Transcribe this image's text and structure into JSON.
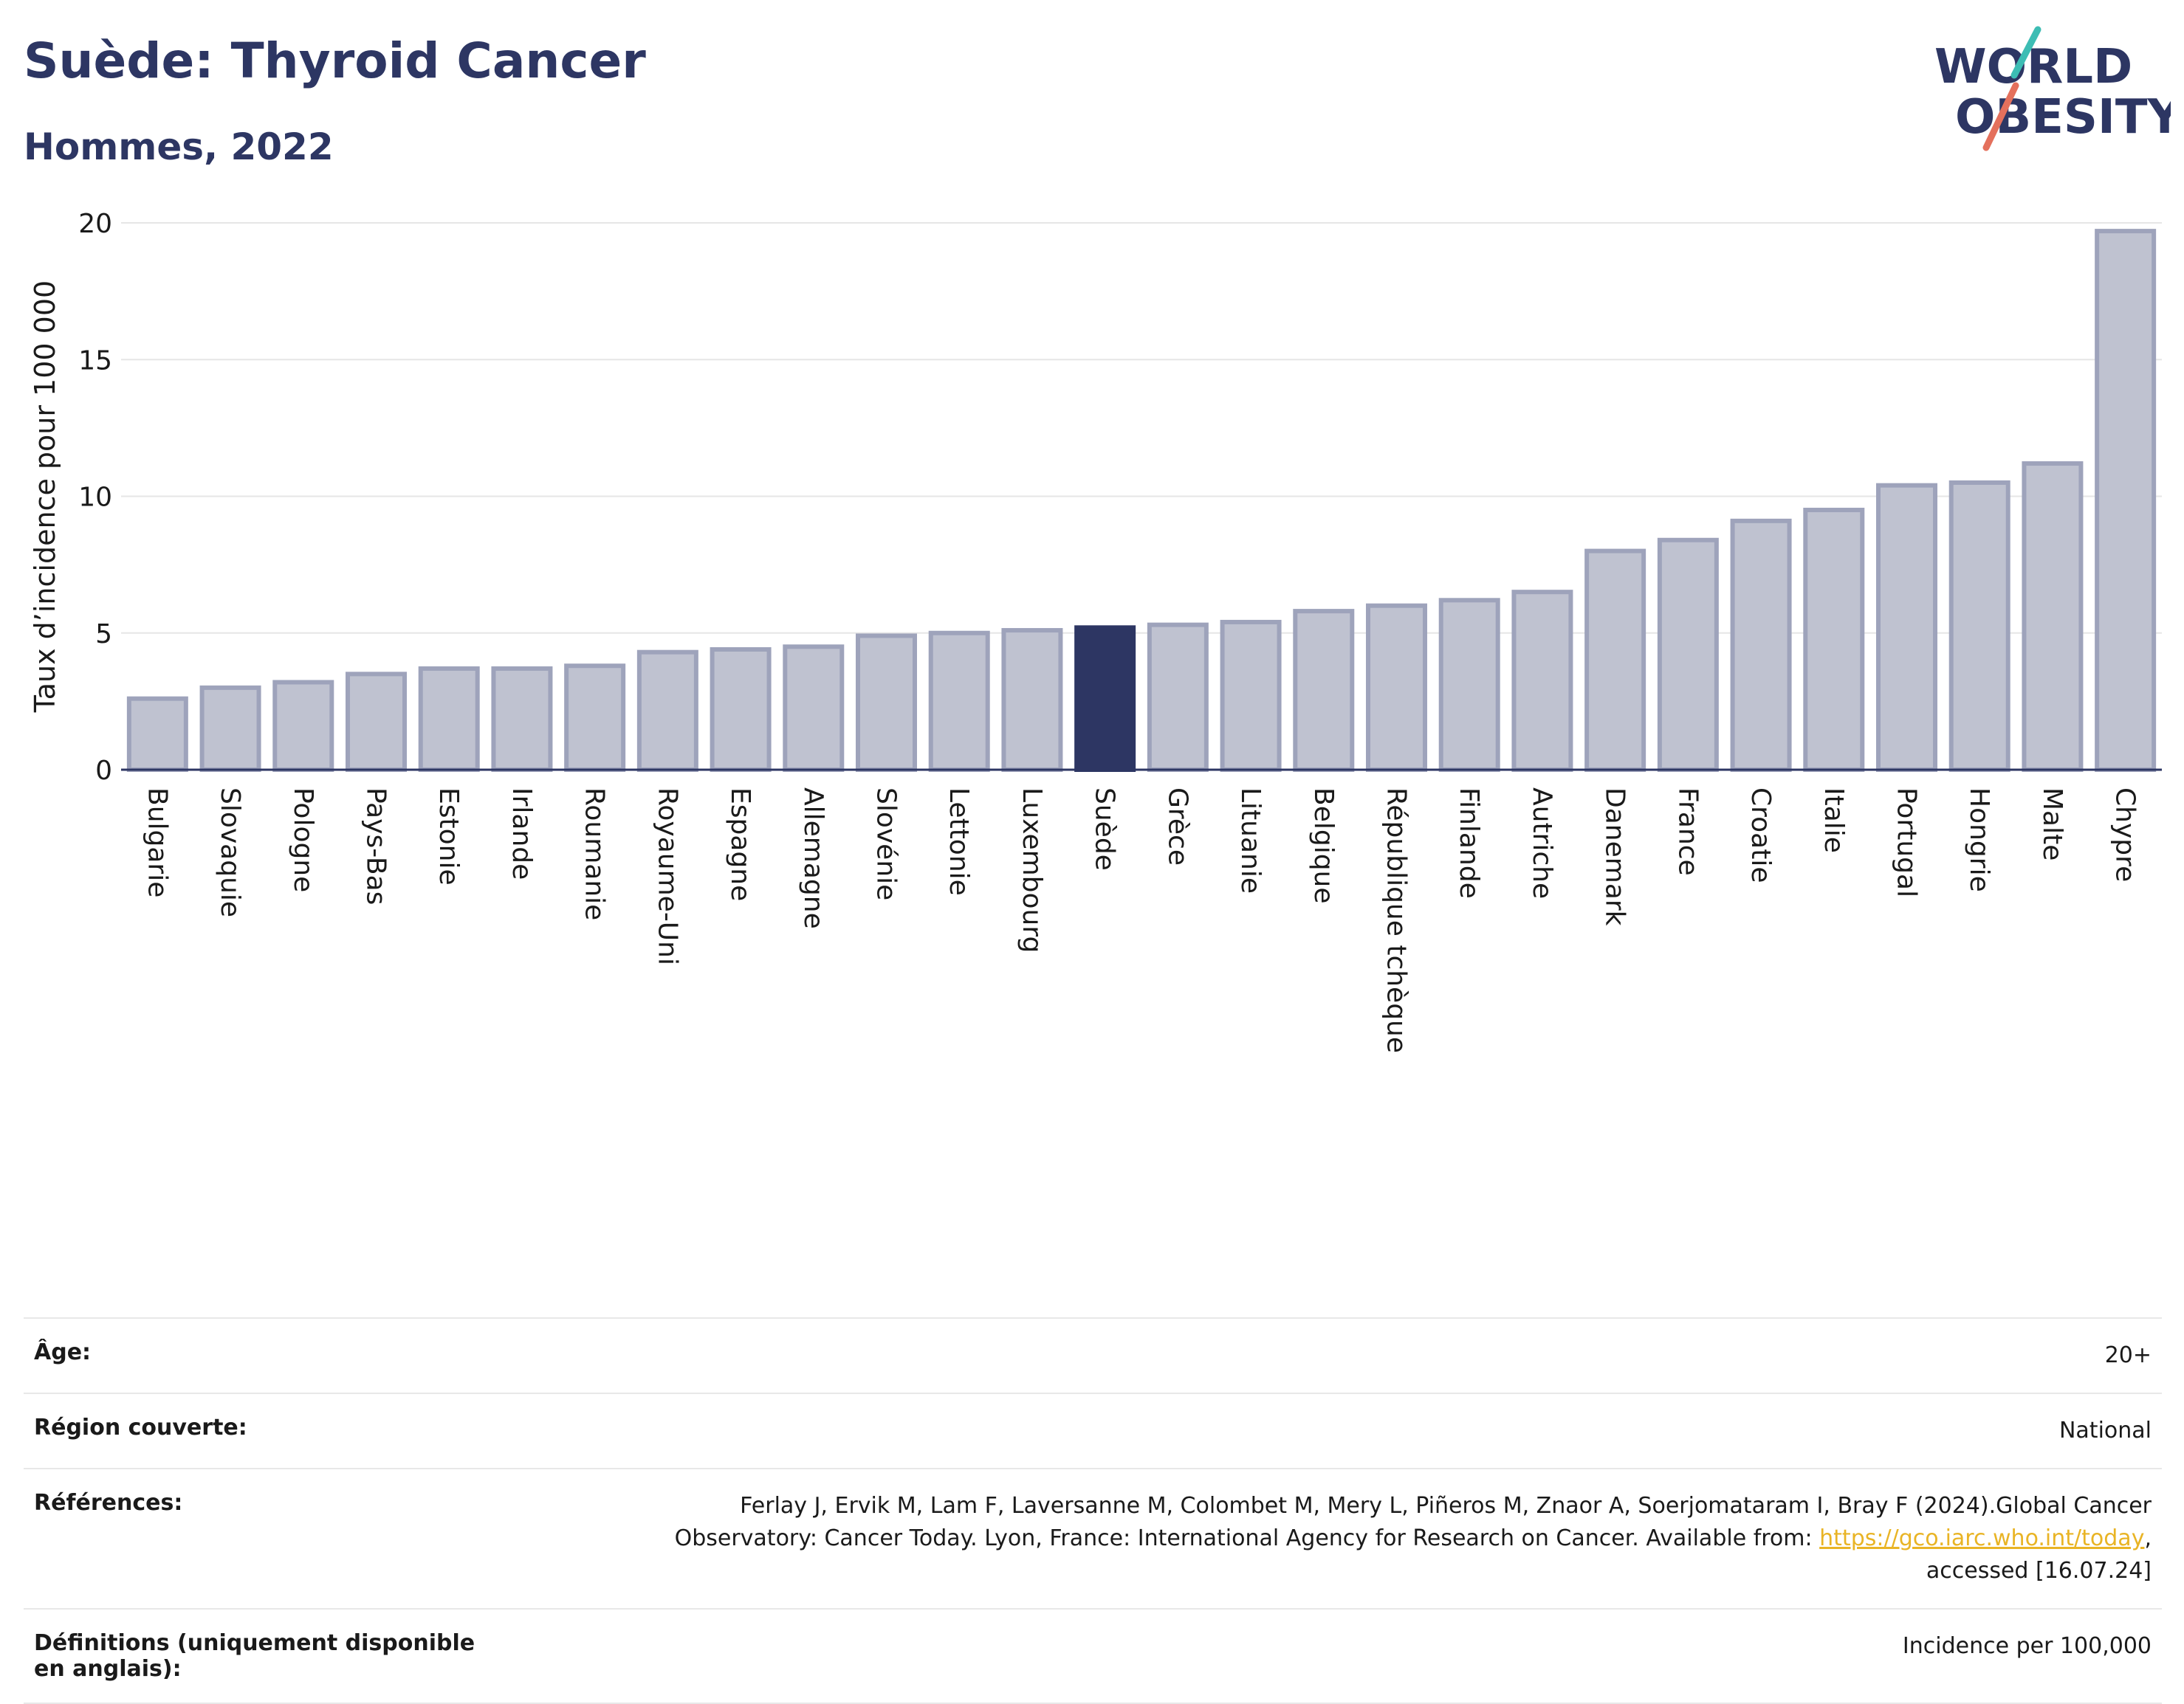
{
  "header": {
    "title": "Suède: Thyroid Cancer",
    "subtitle": "Hommes, 2022",
    "logo_line1": "WORLD",
    "logo_line2": "OBESITY"
  },
  "colors": {
    "highlight": "#2d3663",
    "bar_fill": "#bfc2d0",
    "bar_stroke": "#9ea3bb",
    "accent_red": "#e4705c",
    "accent_teal": "#3dbdb4",
    "link": "#e9b425"
  },
  "chart_data": {
    "type": "bar",
    "title": "Suède: Thyroid Cancer",
    "subtitle": "Hommes, 2022",
    "ylabel": "Taux d’incidence pour 100 000",
    "xlabel": "",
    "ylim": [
      0,
      20
    ],
    "yticks": [
      0,
      5,
      10,
      15,
      20
    ],
    "grid": true,
    "highlight": "Suède",
    "categories": [
      "Bulgarie",
      "Slovaquie",
      "Pologne",
      "Pays-Bas",
      "Estonie",
      "Irlande",
      "Roumanie",
      "Royaume-Uni",
      "Espagne",
      "Allemagne",
      "Slovénie",
      "Lettonie",
      "Luxembourg",
      "Suède",
      "Grèce",
      "Lituanie",
      "Belgique",
      "République tchèque",
      "Finlande",
      "Autriche",
      "Danemark",
      "France",
      "Croatie",
      "Italie",
      "Portugal",
      "Hongrie",
      "Malte",
      "Chypre"
    ],
    "values": [
      2.6,
      3.0,
      3.2,
      3.5,
      3.7,
      3.7,
      3.8,
      4.3,
      4.4,
      4.5,
      4.9,
      5.0,
      5.1,
      5.2,
      5.3,
      5.4,
      5.8,
      6.0,
      6.2,
      6.5,
      8.0,
      8.4,
      9.1,
      9.5,
      10.4,
      10.5,
      11.2,
      19.7
    ]
  },
  "info": {
    "age_label": "Âge:",
    "age_value": "20+",
    "region_label": "Région couverte:",
    "region_value": "National",
    "references_label": "Références:",
    "references_text_1": "Ferlay J, Ervik M, Lam F, Laversanne M, Colombet M, Mery L, Piñeros M, Znaor A, Soerjomataram I, Bray F (2024).Global Cancer",
    "references_text_2": "Observatory: Cancer Today. Lyon, France: International Agency for Research on Cancer. Available from: ",
    "references_link": "https://gco.iarc.who.int/today",
    "references_text_3": ",",
    "references_text_4": "accessed [16.07.24]",
    "definitions_label": "Définitions (uniquement disponible en anglais):",
    "definitions_value": "Incidence per 100,000"
  }
}
